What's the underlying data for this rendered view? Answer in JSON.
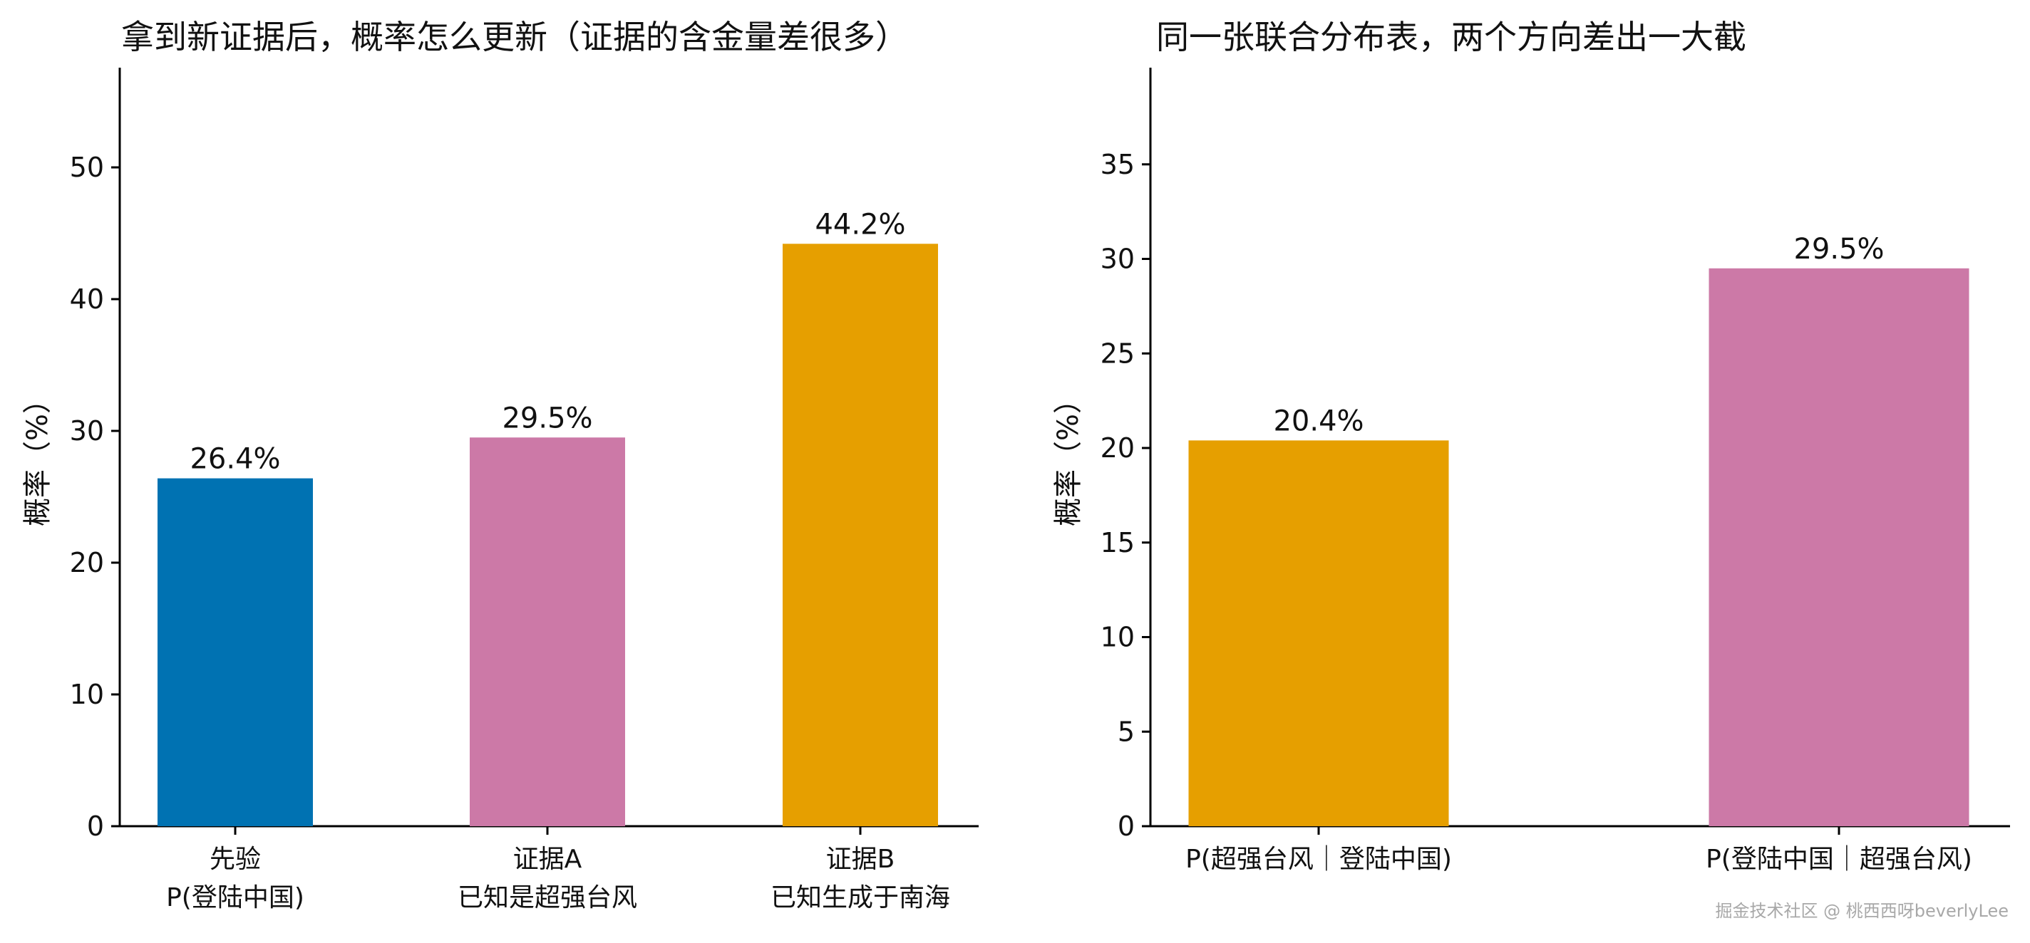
{
  "watermark": "掘金技术社区 @ 桃西西呀beverlyLee",
  "chart_data": [
    {
      "type": "bar",
      "title": "拿到新证据后，概率怎么更新（证据的含金量差很多）",
      "ylabel": "概率（%）",
      "xlabel": "",
      "categories": [
        [
          "先验",
          "P(登陆中国)"
        ],
        [
          "证据A",
          "已知是超强台风"
        ],
        [
          "证据B",
          "已知生成于南海"
        ]
      ],
      "values": [
        26.4,
        29.5,
        44.2
      ],
      "value_labels": [
        "26.4%",
        "29.5%",
        "44.2%"
      ],
      "colors": [
        "#0072B2",
        "#CC79A7",
        "#E69F00"
      ],
      "ylim": [
        0,
        57
      ],
      "yticks": [
        0,
        10,
        20,
        30,
        40,
        50
      ],
      "grid": false,
      "legend": "none"
    },
    {
      "type": "bar",
      "title": "同一张联合分布表，两个方向差出一大截",
      "ylabel": "概率（%）",
      "xlabel": "",
      "categories": [
        [
          "P(超强台风｜登陆中国)"
        ],
        [
          "P(登陆中国｜超强台风)"
        ]
      ],
      "values": [
        20.4,
        29.5
      ],
      "value_labels": [
        "20.4%",
        "29.5%"
      ],
      "colors": [
        "#E69F00",
        "#CC79A7"
      ],
      "ylim": [
        0,
        40
      ],
      "yticks": [
        0,
        5,
        10,
        15,
        20,
        25,
        30,
        35
      ],
      "grid": false,
      "legend": "none"
    }
  ]
}
